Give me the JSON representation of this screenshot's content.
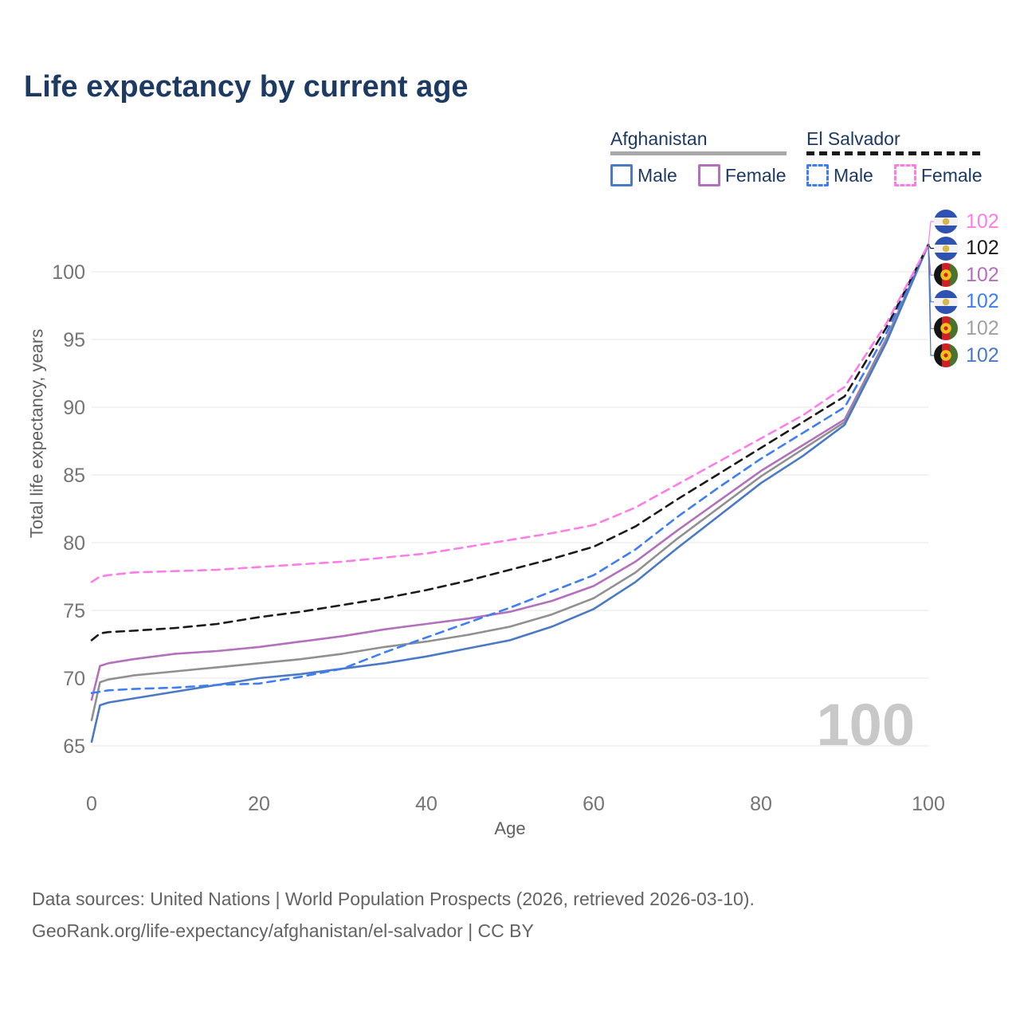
{
  "title": "Life expectancy by current age",
  "legend": {
    "groups": [
      {
        "country": "Afghanistan",
        "line_style": "solid",
        "underline_color": "#a8a8a8",
        "entries": [
          {
            "label": "Male",
            "color": "#4a79c5"
          },
          {
            "label": "Female",
            "color": "#b370bd"
          }
        ]
      },
      {
        "country": "El Salvador",
        "line_style": "dashed",
        "underline_color": "#1a1a1a",
        "entries": [
          {
            "label": "Male",
            "color": "#3f7ef2"
          },
          {
            "label": "Female",
            "color": "#fb7de8"
          }
        ]
      }
    ]
  },
  "chart_data": {
    "type": "line",
    "title": "Life expectancy by current age",
    "xlabel": "Age",
    "ylabel": "Total life expectancy, years",
    "xlim": [
      0,
      100
    ],
    "ylim": [
      65,
      102
    ],
    "xticks": [
      0,
      20,
      40,
      60,
      80,
      100
    ],
    "yticks": [
      65,
      70,
      75,
      80,
      85,
      90,
      95,
      100
    ],
    "grid": "horizontal",
    "legend_position": "top-right",
    "x": [
      0,
      1,
      2,
      5,
      10,
      15,
      20,
      25,
      30,
      35,
      40,
      45,
      50,
      55,
      60,
      65,
      70,
      75,
      80,
      85,
      90,
      95,
      100
    ],
    "series": [
      {
        "name": "Afghanistan Female",
        "country": "Afghanistan",
        "sex": "Female",
        "color": "#b370bd",
        "dash": false,
        "values": [
          68.4,
          70.9,
          71.1,
          71.4,
          71.8,
          72.0,
          72.3,
          72.7,
          73.1,
          73.6,
          74.0,
          74.4,
          74.9,
          75.7,
          76.8,
          78.6,
          80.9,
          83.1,
          85.3,
          87.2,
          89.1,
          95.1,
          102
        ]
      },
      {
        "name": "Afghanistan Both sexes",
        "country": "Afghanistan",
        "sex": "Both",
        "color": "#909090",
        "dash": false,
        "values": [
          66.9,
          69.7,
          69.9,
          70.2,
          70.5,
          70.8,
          71.1,
          71.4,
          71.8,
          72.3,
          72.7,
          73.2,
          73.8,
          74.7,
          75.9,
          77.8,
          80.3,
          82.6,
          84.9,
          86.9,
          88.9,
          95.0,
          102
        ]
      },
      {
        "name": "Afghanistan Male",
        "country": "Afghanistan",
        "sex": "Male",
        "color": "#4a79c5",
        "dash": false,
        "values": [
          65.3,
          68.0,
          68.2,
          68.5,
          69.0,
          69.5,
          70.0,
          70.3,
          70.7,
          71.1,
          71.6,
          72.2,
          72.8,
          73.8,
          75.1,
          77.1,
          79.6,
          82.0,
          84.4,
          86.4,
          88.7,
          94.8,
          102
        ]
      },
      {
        "name": "El Salvador Male",
        "country": "El Salvador",
        "sex": "Male",
        "color": "#3f7ef2",
        "dash": true,
        "values": [
          68.9,
          69.0,
          69.1,
          69.2,
          69.3,
          69.5,
          69.6,
          70.1,
          70.7,
          71.9,
          73.0,
          74.1,
          75.2,
          76.4,
          77.6,
          79.5,
          81.9,
          84.1,
          86.2,
          88.1,
          90.0,
          95.5,
          102
        ]
      },
      {
        "name": "El Salvador Both sexes",
        "country": "El Salvador",
        "sex": "Both",
        "color": "#1a1a1a",
        "dash": true,
        "values": [
          72.8,
          73.3,
          73.4,
          73.5,
          73.7,
          74.0,
          74.5,
          74.9,
          75.4,
          75.9,
          76.5,
          77.2,
          78.0,
          78.8,
          79.7,
          81.2,
          83.2,
          85.1,
          87.0,
          88.9,
          90.8,
          95.9,
          102
        ]
      },
      {
        "name": "El Salvador Female",
        "country": "El Salvador",
        "sex": "Female",
        "color": "#fb7de8",
        "dash": true,
        "values": [
          77.1,
          77.5,
          77.6,
          77.8,
          77.9,
          78.0,
          78.2,
          78.4,
          78.6,
          78.9,
          79.2,
          79.7,
          80.2,
          80.7,
          81.3,
          82.6,
          84.3,
          86.0,
          87.7,
          89.4,
          91.5,
          96.2,
          102
        ]
      }
    ]
  },
  "end_labels": [
    {
      "value": "102",
      "color": "#fb7de8",
      "flag": "el-salvador",
      "series": "El Salvador Female"
    },
    {
      "value": "102",
      "color": "#1a1a1a",
      "flag": "el-salvador",
      "series": "El Salvador Both sexes"
    },
    {
      "value": "102",
      "color": "#b370bd",
      "flag": "afghanistan",
      "series": "Afghanistan Female"
    },
    {
      "value": "102",
      "color": "#3f7ef2",
      "flag": "el-salvador",
      "series": "El Salvador Male"
    },
    {
      "value": "102",
      "color": "#a0a0a0",
      "flag": "afghanistan",
      "series": "Afghanistan Both sexes"
    },
    {
      "value": "102",
      "color": "#4a79c5",
      "flag": "afghanistan",
      "series": "Afghanistan Male"
    }
  ],
  "watermark": "100",
  "footer": {
    "line1": "Data sources: United Nations | World Population Prospects (2026, retrieved 2026-03-10).",
    "line2": "GeoRank.org/life-expectancy/afghanistan/el-salvador | CC BY"
  }
}
